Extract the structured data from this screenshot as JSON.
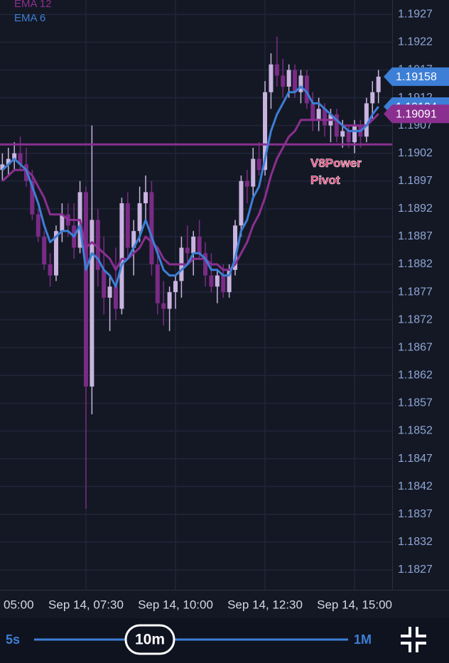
{
  "chart_data": {
    "type": "candlestick",
    "open": [
      1.1899,
      1.19,
      1.1901,
      1.1902,
      1.19,
      1.1897,
      1.1891,
      1.1887,
      1.1882,
      1.188,
      1.1888,
      1.1891,
      1.1889,
      1.1885,
      1.1895,
      1.186,
      1.189,
      1.1881,
      1.1876,
      1.1878,
      1.1874,
      1.1893,
      1.1885,
      1.1888,
      1.1893,
      1.1895,
      1.1882,
      1.1875,
      1.1874,
      1.1877,
      1.1879,
      1.1885,
      1.1884,
      1.1887,
      1.1884,
      1.188,
      1.1878,
      1.188,
      1.1877,
      1.1881,
      1.1889,
      1.1897,
      1.1896,
      1.1901,
      1.1899,
      1.1913,
      1.1918,
      1.1916,
      1.1914,
      1.1917,
      1.1913,
      1.1916,
      1.1911,
      1.1908,
      1.191,
      1.1907,
      1.1909,
      1.1905,
      1.1906,
      1.1904,
      1.1907,
      1.1905,
      1.1911,
      1.1913
    ],
    "high": [
      1.1902,
      1.1903,
      1.1904,
      1.1905,
      1.1903,
      1.1899,
      1.1892,
      1.1888,
      1.1884,
      1.1889,
      1.1893,
      1.1893,
      1.1893,
      1.1897,
      1.1896,
      1.1907,
      1.1892,
      1.1887,
      1.188,
      1.1885,
      1.1894,
      1.1895,
      1.189,
      1.1896,
      1.1898,
      1.1897,
      1.1885,
      1.1879,
      1.1878,
      1.188,
      1.1887,
      1.1889,
      1.1888,
      1.189,
      1.1886,
      1.1884,
      1.1881,
      1.1882,
      1.1882,
      1.189,
      1.1898,
      1.1899,
      1.1903,
      1.1904,
      1.1915,
      1.192,
      1.1923,
      1.1919,
      1.1918,
      1.1918,
      1.1917,
      1.1917,
      1.1913,
      1.1912,
      1.1911,
      1.191,
      1.191,
      1.1908,
      1.1907,
      1.1908,
      1.1908,
      1.1912,
      1.1915,
      1.1917
    ],
    "low": [
      1.1897,
      1.1898,
      1.1899,
      1.1899,
      1.1896,
      1.189,
      1.1886,
      1.1881,
      1.1878,
      1.1879,
      1.1886,
      1.1887,
      1.1883,
      1.1884,
      1.1838,
      1.1855,
      1.1878,
      1.1873,
      1.187,
      1.1872,
      1.1873,
      1.1883,
      1.188,
      1.1886,
      1.189,
      1.188,
      1.1873,
      1.1871,
      1.187,
      1.1874,
      1.1876,
      1.1882,
      1.188,
      1.1883,
      1.1878,
      1.1877,
      1.1875,
      1.1876,
      1.1876,
      1.188,
      1.1887,
      1.1893,
      1.1894,
      1.1898,
      1.1898,
      1.191,
      1.1914,
      1.1912,
      1.1912,
      1.1912,
      1.1911,
      1.191,
      1.1906,
      1.1906,
      1.1905,
      1.1904,
      1.1904,
      1.1903,
      1.1903,
      1.1902,
      1.1903,
      1.1904,
      1.1908,
      1.1911
    ],
    "close": [
      1.19,
      1.1901,
      1.1902,
      1.19,
      1.1897,
      1.1891,
      1.1887,
      1.1882,
      1.188,
      1.1888,
      1.1891,
      1.1889,
      1.1885,
      1.1895,
      1.186,
      1.189,
      1.1881,
      1.1876,
      1.1878,
      1.1874,
      1.1893,
      1.1885,
      1.1888,
      1.1893,
      1.1895,
      1.1882,
      1.1875,
      1.1874,
      1.1877,
      1.1879,
      1.1885,
      1.1884,
      1.1887,
      1.1884,
      1.188,
      1.1878,
      1.188,
      1.1877,
      1.1881,
      1.1889,
      1.1897,
      1.1896,
      1.1901,
      1.1899,
      1.1913,
      1.1918,
      1.1916,
      1.1914,
      1.1917,
      1.1913,
      1.1916,
      1.1911,
      1.1908,
      1.191,
      1.1907,
      1.1909,
      1.1905,
      1.1906,
      1.1904,
      1.1907,
      1.1905,
      1.1911,
      1.1913,
      1.19158
    ],
    "up_color": "#c9b4e0",
    "down_color": "#7a2b86",
    "last_price_color": "#3d7fd6",
    "series": [
      {
        "name": "EMA 12",
        "color": "#8a2f90",
        "values": [
          1.1897,
          1.1898,
          1.1899,
          1.1899,
          1.1899,
          1.1898,
          1.1896,
          1.1894,
          1.1891,
          1.1891,
          1.1891,
          1.189,
          1.189,
          1.189,
          1.1885,
          1.1886,
          1.1885,
          1.1884,
          1.1883,
          1.1881,
          1.1883,
          1.1883,
          1.1884,
          1.1885,
          1.1887,
          1.1886,
          1.1885,
          1.1883,
          1.1882,
          1.1882,
          1.1882,
          1.1882,
          1.1883,
          1.1883,
          1.1883,
          1.1882,
          1.1882,
          1.1881,
          1.1881,
          1.1882,
          1.1884,
          1.1886,
          1.1889,
          1.1891,
          1.1894,
          1.1898,
          1.1901,
          1.1903,
          1.1905,
          1.1906,
          1.1908,
          1.1908,
          1.1908,
          1.1908,
          1.1908,
          1.1908,
          1.1908,
          1.1907,
          1.1907,
          1.1907,
          1.1907,
          1.1907,
          1.1908,
          1.19091
        ]
      },
      {
        "name": "EMA 6",
        "color": "#3d7fd6",
        "values": [
          1.1899,
          1.19,
          1.1901,
          1.19,
          1.1899,
          1.1896,
          1.1893,
          1.1889,
          1.1886,
          1.1887,
          1.1888,
          1.1888,
          1.1887,
          1.1889,
          1.1881,
          1.1884,
          1.1883,
          1.1881,
          1.188,
          1.1878,
          1.1882,
          1.1883,
          1.1885,
          1.1887,
          1.189,
          1.1887,
          1.1884,
          1.1881,
          1.188,
          1.188,
          1.1881,
          1.1882,
          1.1884,
          1.1884,
          1.1883,
          1.1881,
          1.1881,
          1.188,
          1.188,
          1.1883,
          1.1888,
          1.189,
          1.1894,
          1.1896,
          1.1901,
          1.1906,
          1.1909,
          1.1911,
          1.1913,
          1.1913,
          1.1914,
          1.1913,
          1.1911,
          1.1911,
          1.191,
          1.1909,
          1.1908,
          1.1907,
          1.1906,
          1.1906,
          1.1906,
          1.1907,
          1.1909,
          1.19104
        ]
      }
    ],
    "pivot": {
      "label": "V8Power Pivot",
      "value": 1.19036,
      "color": "#8a2f90",
      "label_color": "#e8336f"
    },
    "xlim": [
      -0.4,
      65.3
    ],
    "xticks": [
      {
        "value": -1,
        "label": "05:00"
      },
      {
        "value": 14,
        "label": "Sep 14, 07:30"
      },
      {
        "value": 29,
        "label": "Sep 14, 10:00"
      },
      {
        "value": 44,
        "label": "Sep 14, 12:30"
      },
      {
        "value": 59,
        "label": "Sep 14, 15:00"
      }
    ],
    "ylim": [
      1.18234,
      1.19296
    ],
    "yticks": [
      1.1927,
      1.1922,
      1.1917,
      1.1912,
      1.1907,
      1.1902,
      1.1897,
      1.1892,
      1.1887,
      1.1882,
      1.1877,
      1.1872,
      1.1867,
      1.1862,
      1.1857,
      1.1852,
      1.1847,
      1.1842,
      1.1837,
      1.1832,
      1.1827
    ],
    "grid": true
  },
  "controls": {
    "min_label": "5s",
    "selected": "10m",
    "max_label": "1M"
  }
}
